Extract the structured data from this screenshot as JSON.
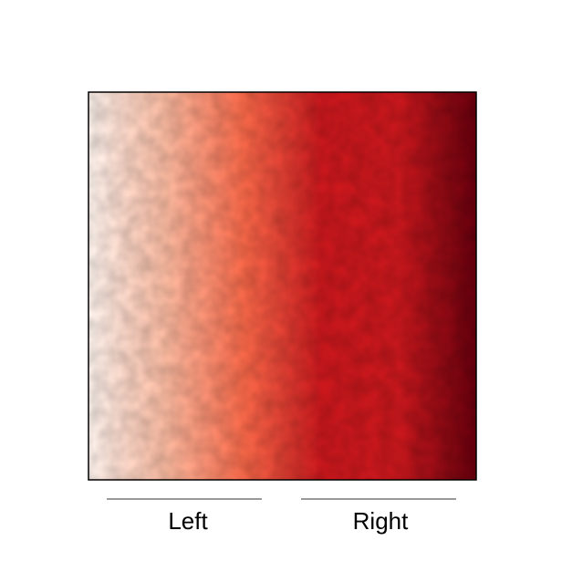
{
  "chart_data": {
    "type": "heatmap",
    "title": "",
    "xlabel": "",
    "ylabel": "",
    "colormap": "Reds",
    "gradient_direction": "left-to-right",
    "value_range": [
      0,
      1
    ],
    "grid": false,
    "frame": true,
    "x_group_labels": [
      "Left",
      "Right"
    ],
    "colors": {
      "low": "#fff5f0",
      "mid_low": "#fcbba1",
      "mid": "#fb6a4a",
      "mid_high": "#cb181d",
      "high": "#67000d"
    }
  }
}
